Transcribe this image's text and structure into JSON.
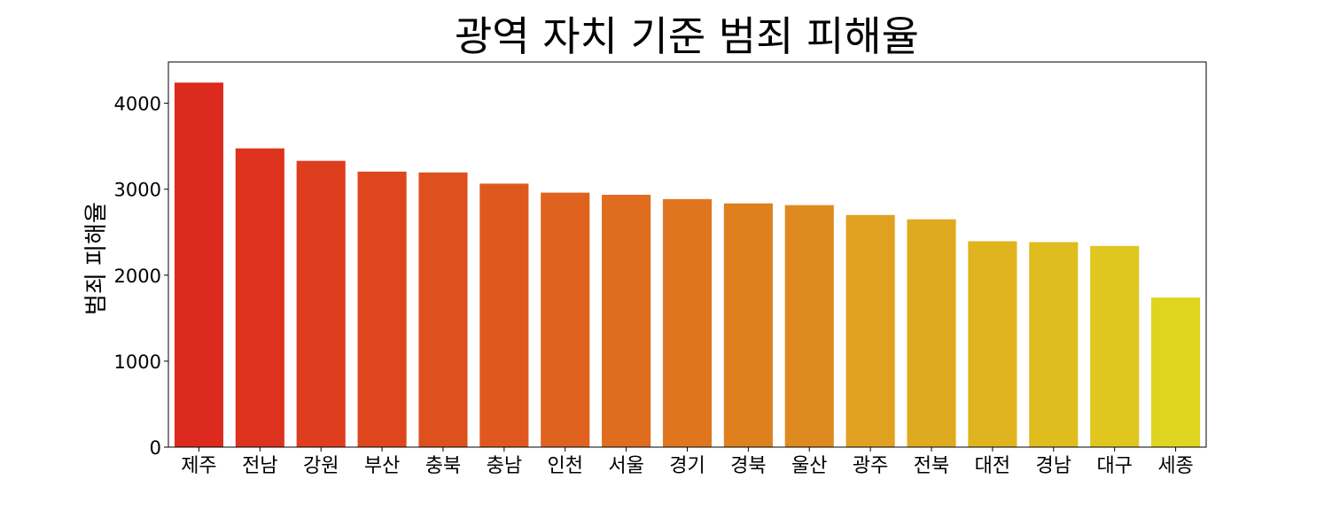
{
  "chart_data": {
    "type": "bar",
    "title": "광역 자치 기준 범죄 피해율",
    "xlabel": "",
    "ylabel": "범죄 피해율",
    "categories": [
      "제주",
      "전남",
      "강원",
      "부산",
      "충북",
      "충남",
      "인천",
      "서울",
      "경기",
      "경북",
      "울산",
      "광주",
      "전북",
      "대전",
      "경남",
      "대구",
      "세종"
    ],
    "values": [
      4240,
      3475,
      3330,
      3205,
      3195,
      3065,
      2960,
      2935,
      2885,
      2835,
      2815,
      2700,
      2650,
      2395,
      2385,
      2340,
      1740
    ],
    "ylim": [
      0,
      4480
    ],
    "yticks": [
      0,
      1000,
      2000,
      3000,
      4000
    ],
    "grid": false,
    "legend": "none",
    "bar_colors": [
      "#dc2a1e",
      "#dd331e",
      "#de3d1e",
      "#de461e",
      "#df501f",
      "#df591f",
      "#df631f",
      "#df6c1f",
      "#df761f",
      "#df801f",
      "#df8a1f",
      "#dfa11f",
      "#dfaa1f",
      "#dfb41f",
      "#dfbd1f",
      "#dfc71f",
      "#dfd41f"
    ]
  }
}
